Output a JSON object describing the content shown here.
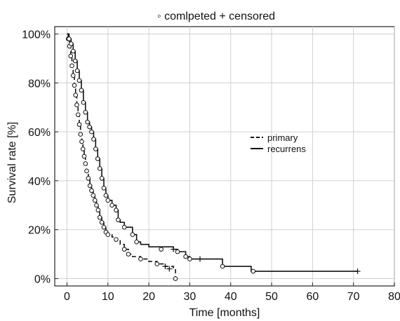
{
  "chart_data": {
    "type": "line",
    "title": "◦ comlpeted + censored",
    "xlabel": "Time [months]",
    "ylabel": "Survival rate [%]",
    "xlim": [
      -3,
      80
    ],
    "ylim": [
      -3,
      103
    ],
    "x_ticks": [
      0,
      10,
      20,
      30,
      40,
      50,
      60,
      70,
      80
    ],
    "x_tick_labels": [
      "0",
      "10",
      "20",
      "30",
      "40",
      "50",
      "60",
      "70",
      "80"
    ],
    "y_ticks": [
      0,
      20,
      40,
      60,
      80,
      100
    ],
    "y_tick_labels": [
      "0%",
      "20%",
      "40%",
      "60%",
      "80%",
      "100%"
    ],
    "grid": true,
    "legend_position": "center-right",
    "series": [
      {
        "name": "primary",
        "line_style": "dashed",
        "color": "#111111",
        "points": [
          [
            0,
            100
          ],
          [
            0.3,
            98
          ],
          [
            0.6,
            95
          ],
          [
            0.9,
            91
          ],
          [
            1.2,
            87
          ],
          [
            1.5,
            83
          ],
          [
            1.8,
            79
          ],
          [
            2.1,
            75
          ],
          [
            2.4,
            71
          ],
          [
            2.7,
            67
          ],
          [
            3.0,
            63
          ],
          [
            3.3,
            59
          ],
          [
            3.6,
            56
          ],
          [
            3.9,
            53
          ],
          [
            4.2,
            50
          ],
          [
            4.5,
            47
          ],
          [
            4.8,
            44
          ],
          [
            5.2,
            41
          ],
          [
            5.6,
            38
          ],
          [
            6.0,
            36
          ],
          [
            6.4,
            34
          ],
          [
            6.8,
            32
          ],
          [
            7.2,
            30
          ],
          [
            7.6,
            28
          ],
          [
            8.0,
            25
          ],
          [
            8.5,
            23
          ],
          [
            9.0,
            21
          ],
          [
            9.5,
            19
          ],
          [
            10.0,
            18
          ],
          [
            11.0,
            17
          ],
          [
            12.0,
            16
          ],
          [
            13.0,
            14
          ],
          [
            14.0,
            12
          ],
          [
            15.0,
            10
          ],
          [
            16.0,
            9
          ],
          [
            18.0,
            8
          ],
          [
            20.0,
            7
          ],
          [
            22.0,
            6
          ],
          [
            24.0,
            5
          ],
          [
            26.0,
            4
          ],
          [
            26.5,
            0
          ]
        ],
        "completed": [
          [
            0.3,
            98
          ],
          [
            0.6,
            95
          ],
          [
            0.9,
            91
          ],
          [
            1.2,
            87
          ],
          [
            1.5,
            83
          ],
          [
            1.8,
            79
          ],
          [
            2.1,
            75
          ],
          [
            2.4,
            71
          ],
          [
            2.7,
            67
          ],
          [
            3.0,
            63
          ],
          [
            3.3,
            59
          ],
          [
            3.6,
            56
          ],
          [
            3.9,
            53
          ],
          [
            4.2,
            50
          ],
          [
            4.5,
            47
          ],
          [
            4.8,
            44
          ],
          [
            5.2,
            41
          ],
          [
            5.6,
            38
          ],
          [
            6.0,
            36
          ],
          [
            6.4,
            34
          ],
          [
            6.8,
            32
          ],
          [
            7.2,
            30
          ],
          [
            7.6,
            28
          ],
          [
            8.0,
            25
          ],
          [
            8.5,
            23
          ],
          [
            9.0,
            21
          ],
          [
            9.5,
            19
          ],
          [
            10.0,
            18
          ],
          [
            12.0,
            16
          ],
          [
            14.0,
            12
          ],
          [
            15.0,
            10
          ],
          [
            18.0,
            8
          ],
          [
            22.0,
            6
          ],
          [
            26.5,
            0
          ]
        ],
        "censored": [
          [
            24.0,
            5
          ],
          [
            25.0,
            4
          ]
        ]
      },
      {
        "name": "recurrens",
        "line_style": "solid",
        "color": "#111111",
        "points": [
          [
            0,
            100
          ],
          [
            0.5,
            98
          ],
          [
            1.0,
            96
          ],
          [
            1.5,
            93
          ],
          [
            2.0,
            89
          ],
          [
            2.5,
            85
          ],
          [
            3.0,
            81
          ],
          [
            3.5,
            77
          ],
          [
            4.0,
            72
          ],
          [
            4.5,
            68
          ],
          [
            5.0,
            64
          ],
          [
            5.5,
            62
          ],
          [
            6.0,
            60
          ],
          [
            6.5,
            57
          ],
          [
            7.0,
            53
          ],
          [
            7.5,
            49
          ],
          [
            8.0,
            45
          ],
          [
            8.5,
            41
          ],
          [
            9.0,
            37
          ],
          [
            9.5,
            34
          ],
          [
            10.0,
            32
          ],
          [
            11.0,
            30
          ],
          [
            12.0,
            28
          ],
          [
            12.5,
            24
          ],
          [
            13.0,
            23
          ],
          [
            14.0,
            21
          ],
          [
            15.0,
            21
          ],
          [
            16.0,
            18
          ],
          [
            17.0,
            15
          ],
          [
            18.0,
            14
          ],
          [
            20.0,
            13
          ],
          [
            23.0,
            13
          ],
          [
            26.0,
            12
          ],
          [
            27.0,
            11
          ],
          [
            29.0,
            9
          ],
          [
            30.0,
            8
          ],
          [
            33.0,
            8
          ],
          [
            38.0,
            5
          ],
          [
            45.0,
            3
          ],
          [
            71.0,
            3
          ]
        ],
        "completed": [
          [
            0.5,
            98
          ],
          [
            1.0,
            96
          ],
          [
            1.5,
            93
          ],
          [
            2.0,
            89
          ],
          [
            2.5,
            85
          ],
          [
            3.0,
            81
          ],
          [
            3.5,
            77
          ],
          [
            4.0,
            72
          ],
          [
            4.5,
            68
          ],
          [
            5.0,
            64
          ],
          [
            5.5,
            62
          ],
          [
            6.0,
            60
          ],
          [
            6.5,
            57
          ],
          [
            7.0,
            53
          ],
          [
            7.5,
            49
          ],
          [
            8.0,
            45
          ],
          [
            8.5,
            41
          ],
          [
            9.0,
            37
          ],
          [
            9.5,
            34
          ],
          [
            10.0,
            32
          ],
          [
            11.0,
            30
          ],
          [
            12.0,
            28
          ],
          [
            12.5,
            24
          ],
          [
            14.0,
            21
          ],
          [
            16.0,
            18
          ],
          [
            17.0,
            15
          ],
          [
            23.0,
            12
          ],
          [
            27.0,
            11
          ],
          [
            29.0,
            9
          ],
          [
            30.0,
            8
          ],
          [
            38.0,
            5
          ],
          [
            45.5,
            3
          ]
        ],
        "censored": [
          [
            26.0,
            12
          ],
          [
            32.5,
            8
          ],
          [
            71.0,
            3
          ]
        ]
      }
    ]
  }
}
